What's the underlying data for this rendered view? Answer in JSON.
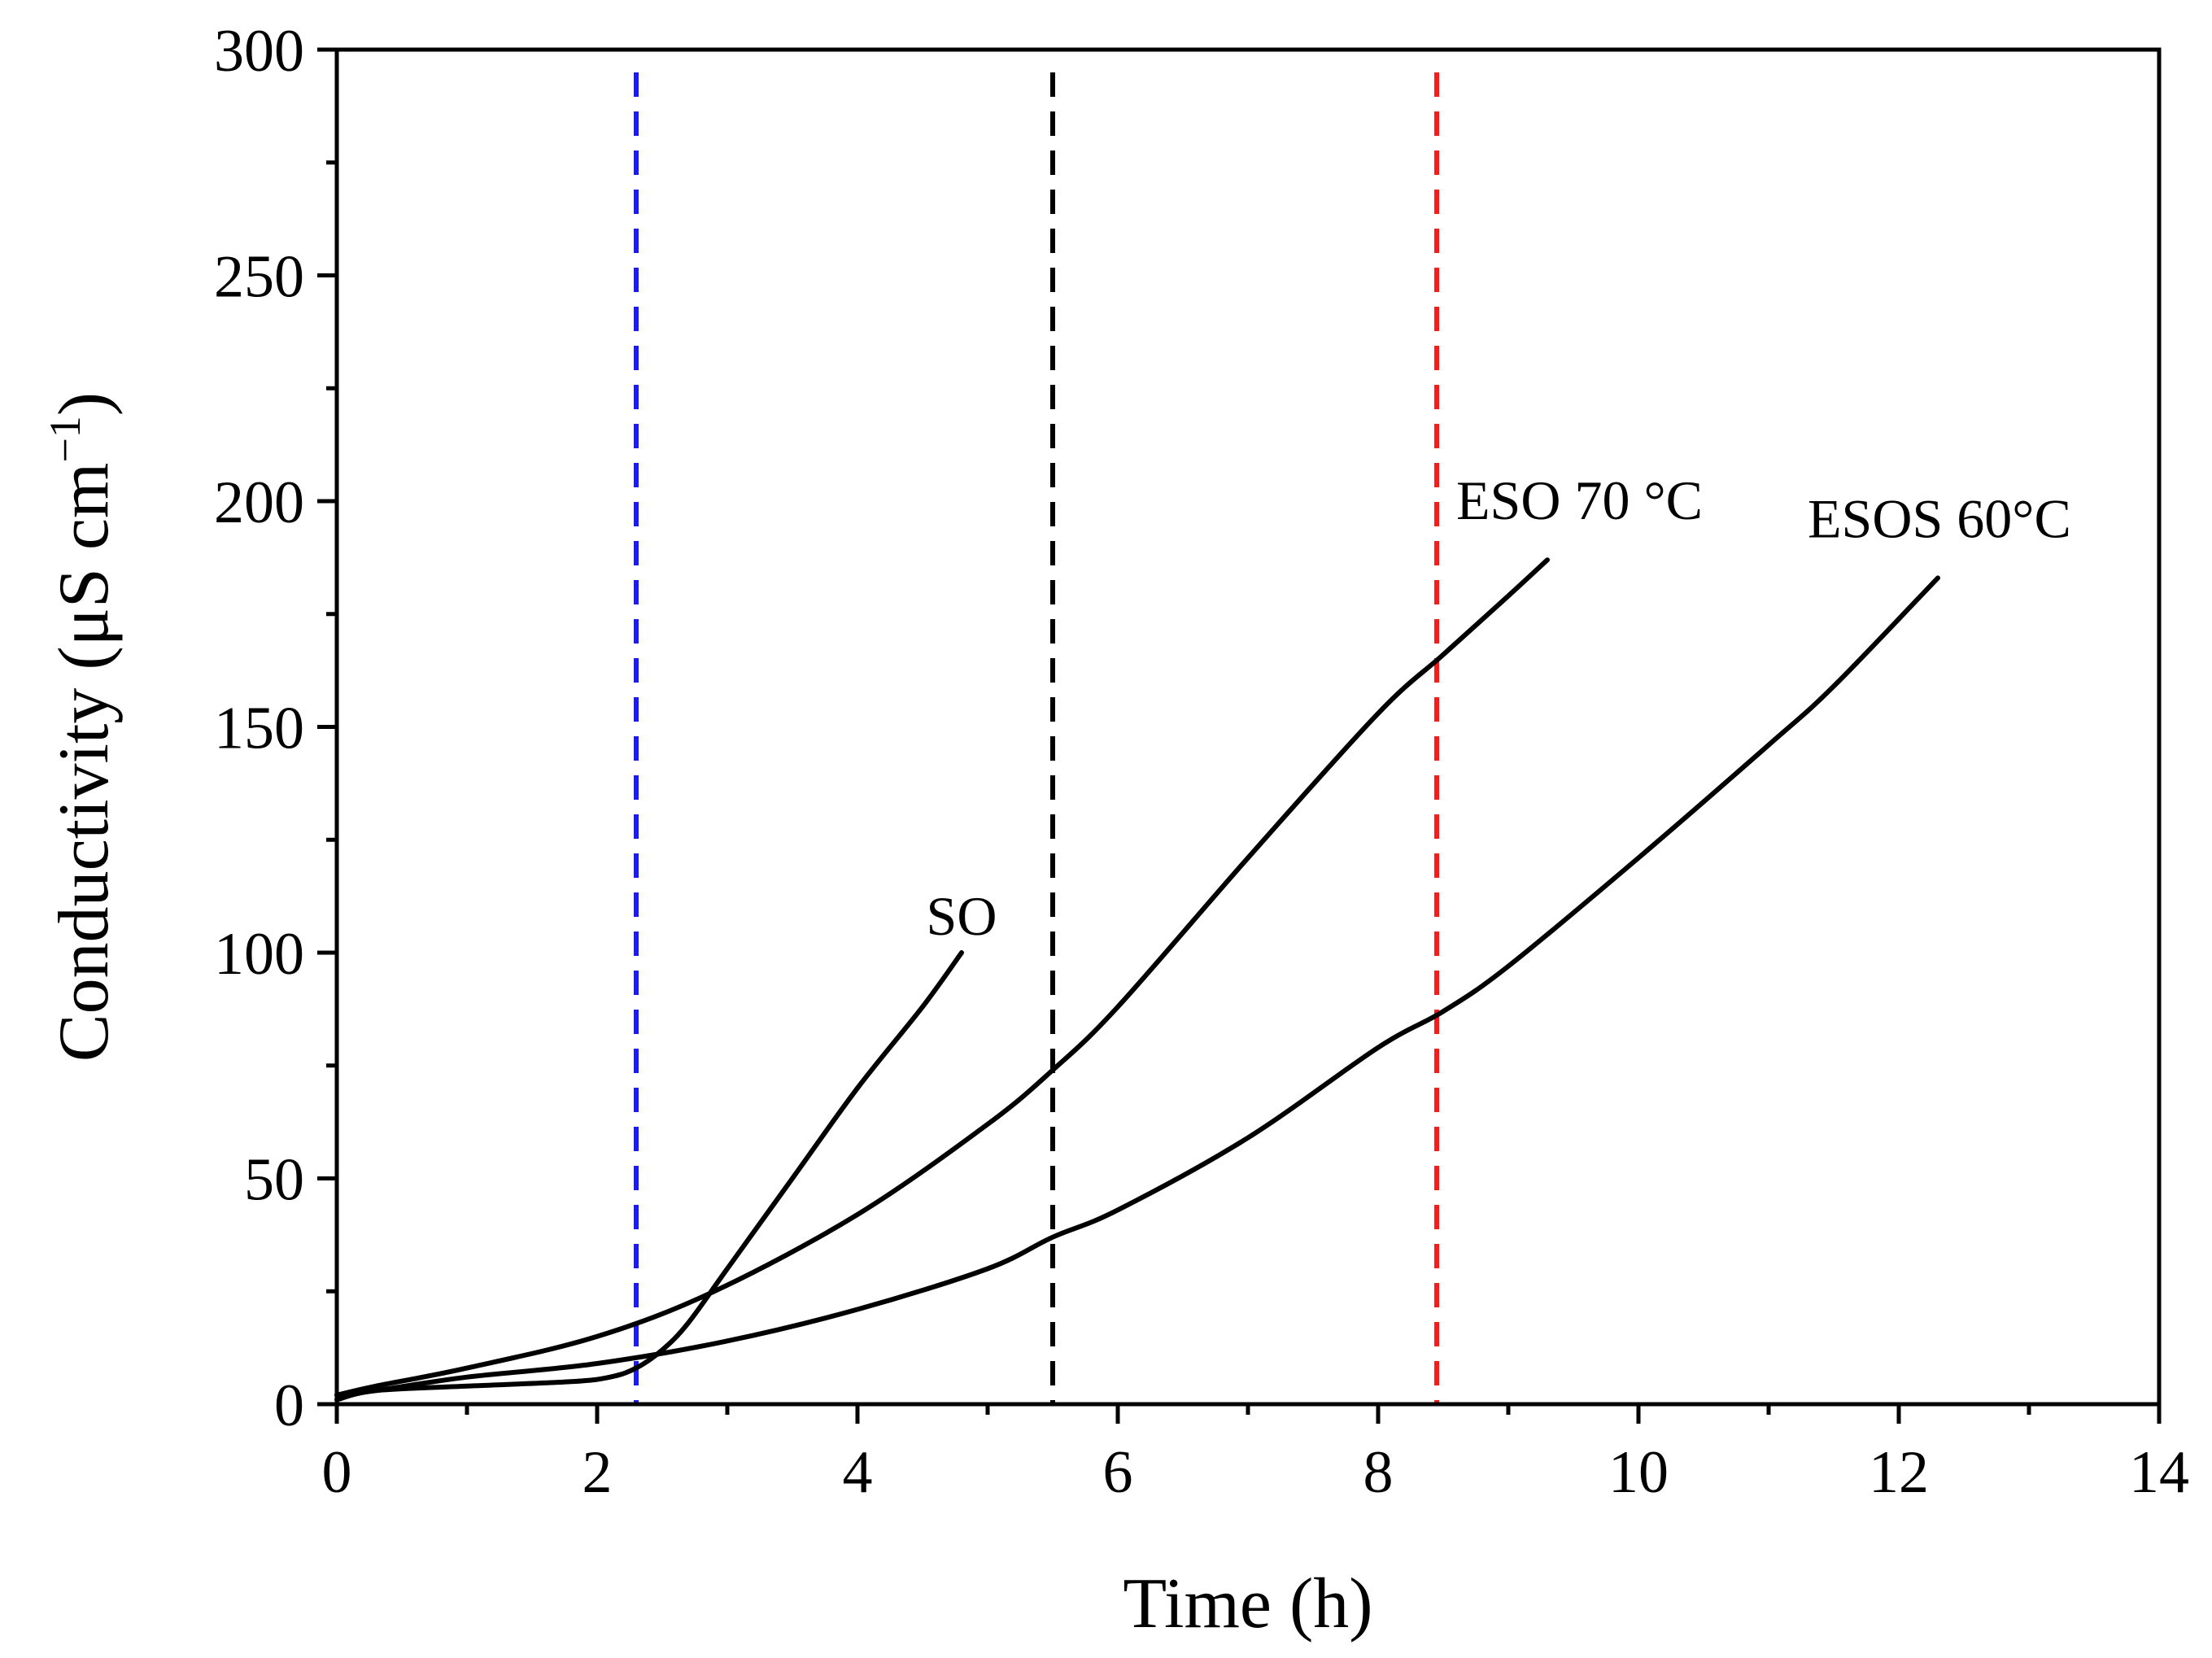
{
  "chart_data": {
    "type": "line",
    "title": "",
    "xlabel": "Time (h)",
    "ylabel": "Conductivity (μS cm",
    "ylabel_superscript": "−1",
    "ylabel_close": ")",
    "xlim": [
      0,
      14
    ],
    "ylim": [
      0,
      300
    ],
    "x_ticks": [
      0,
      2,
      4,
      6,
      8,
      10,
      12,
      14
    ],
    "y_ticks": [
      0,
      50,
      100,
      150,
      200,
      250,
      300
    ],
    "x_tick_labels": [
      "0",
      "2",
      "4",
      "6",
      "8",
      "10",
      "12",
      "14"
    ],
    "y_tick_labels": [
      "0",
      "50",
      "100",
      "150",
      "200",
      "250",
      "300"
    ],
    "grid": false,
    "legend": "none",
    "series": [
      {
        "name": "SO",
        "label": "SO",
        "color": "#000000",
        "x": [
          0,
          0.3,
          1.0,
          1.8,
          2.1,
          2.3,
          2.5,
          2.7,
          3.0,
          3.5,
          4.0,
          4.5,
          4.8
        ],
        "y": [
          1,
          3,
          4,
          5,
          6,
          8,
          12,
          18,
          30,
          50,
          70,
          88,
          100
        ]
      },
      {
        "name": "ESO 70 °C",
        "label": "ESO 70 °C",
        "color": "#000000",
        "x": [
          0,
          0.3,
          1.0,
          2.0,
          2.9,
          4.0,
          5.0,
          5.5,
          6.0,
          7.0,
          8.0,
          8.5,
          9.0,
          9.3
        ],
        "y": [
          2,
          4,
          8,
          15,
          25,
          42,
          62,
          74,
          88,
          121,
          153,
          166,
          179,
          187
        ],
        "label_anchor": [
          8.6,
          196
        ]
      },
      {
        "name": "ESOS 60°C",
        "label": "ESOS 60°C",
        "color": "#000000",
        "x": [
          0,
          0.3,
          1.0,
          2.0,
          3.0,
          4.0,
          5.0,
          5.5,
          6.0,
          7.0,
          8.0,
          8.5,
          9.0,
          10.0,
          11.0,
          11.5,
          12.3
        ],
        "y": [
          2,
          3,
          6,
          9,
          14,
          21,
          30,
          37,
          43,
          59,
          79,
          87,
          97,
          121,
          146,
          159,
          183
        ],
        "label_anchor": [
          11.3,
          192
        ]
      }
    ],
    "reference_lines": [
      {
        "orientation": "vertical",
        "x": 2.3,
        "color": "#1a1aff",
        "style": "dashed"
      },
      {
        "orientation": "vertical",
        "x": 5.5,
        "color": "#000000",
        "style": "dashed"
      },
      {
        "orientation": "vertical",
        "x": 8.45,
        "color": "#ff1a1a",
        "style": "dashed"
      }
    ]
  }
}
